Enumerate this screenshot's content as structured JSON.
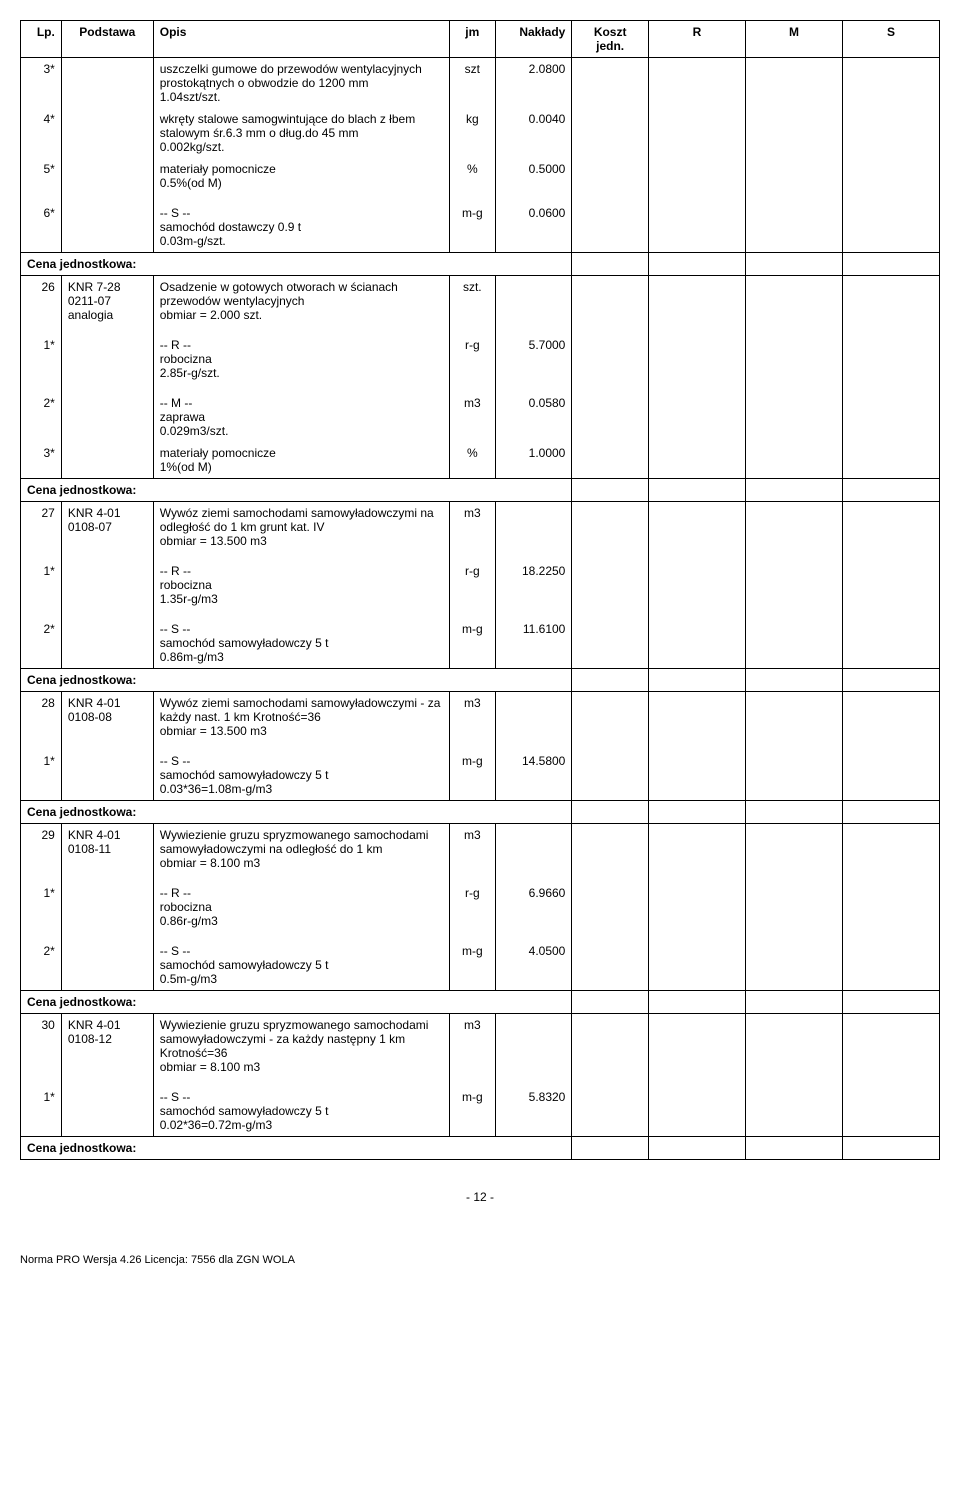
{
  "headers": {
    "lp": "Lp.",
    "podstawa": "Podstawa",
    "opis": "Opis",
    "jm": "jm",
    "naklady": "Nakłady",
    "koszt": "Koszt jedn.",
    "r": "R",
    "m": "M",
    "s": "S"
  },
  "cena_label": "Cena jednostkowa:",
  "rows": [
    {
      "lp": "3*",
      "opis": "uszczelki gumowe do przewodów wentylacyjnych prostokątnych o obwodzie do 1200 mm\n1.04szt/szt.",
      "jm": "szt",
      "naklady": "2.0800"
    },
    {
      "lp": "4*",
      "opis": "wkręty stalowe samogwintujące do blach z łbem stalowym śr.6.3 mm o dług.do 45 mm\n0.002kg/szt.",
      "jm": "kg",
      "naklady": "0.0040"
    },
    {
      "lp": "5*",
      "opis": "materiały pomocnicze\n0.5%(od M)",
      "jm": "%",
      "naklady": "0.5000"
    },
    {
      "spacer": true
    },
    {
      "lp": "6*",
      "opis": "-- S --\nsamochód dostawczy 0.9 t\n0.03m-g/szt.",
      "jm": "m-g",
      "naklady": "0.0600"
    }
  ],
  "group26": {
    "lp": "26",
    "podstawa": "KNR 7-28\n0211-07\nanalogia",
    "opis": "Osadzenie w gotowych otworach w ścianach przewodów wentylacyjnych\nobmiar  =  2.000 szt.",
    "jm": "szt.",
    "sub": [
      {
        "spacer": true
      },
      {
        "lp": "1*",
        "opis": "-- R --\nrobocizna\n2.85r-g/szt.",
        "jm": "r-g",
        "naklady": "5.7000"
      },
      {
        "spacer": true
      },
      {
        "lp": "2*",
        "opis": "-- M --\nzaprawa\n0.029m3/szt.",
        "jm": "m3",
        "naklady": "0.0580"
      },
      {
        "lp": "3*",
        "opis": "materiały pomocnicze\n1%(od M)",
        "jm": "%",
        "naklady": "1.0000"
      }
    ]
  },
  "group27": {
    "lp": "27",
    "podstawa": "KNR 4-01\n0108-07",
    "opis": "Wywóz ziemi samochodami samowyładowczymi na odległość do 1 km grunt kat. IV\nobmiar  =  13.500 m3",
    "jm": "m3",
    "sub": [
      {
        "spacer": true
      },
      {
        "lp": "1*",
        "opis": "-- R --\nrobocizna\n1.35r-g/m3",
        "jm": "r-g",
        "naklady": "18.2250"
      },
      {
        "spacer": true
      },
      {
        "lp": "2*",
        "opis": "-- S --\nsamochód samowyładowczy 5 t\n0.86m-g/m3",
        "jm": "m-g",
        "naklady": "11.6100"
      }
    ]
  },
  "group28": {
    "lp": "28",
    "podstawa": "KNR 4-01\n0108-08",
    "opis": "Wywóz ziemi samochodami samowyładowczymi - za każdy nast. 1 km Krotność=36\nobmiar  =  13.500 m3",
    "jm": "m3",
    "sub": [
      {
        "spacer": true
      },
      {
        "lp": "1*",
        "opis": "-- S --\nsamochód samowyładowczy 5 t\n0.03*36=1.08m-g/m3",
        "jm": "m-g",
        "naklady": "14.5800"
      }
    ]
  },
  "group29": {
    "lp": "29",
    "podstawa": "KNR 4-01\n0108-11",
    "opis": "Wywiezienie gruzu spryzmowanego samochodami samowyładowczymi na odległość do 1 km\nobmiar  =  8.100 m3",
    "jm": "m3",
    "sub": [
      {
        "spacer": true
      },
      {
        "lp": "1*",
        "opis": "-- R --\nrobocizna\n0.86r-g/m3",
        "jm": "r-g",
        "naklady": "6.9660"
      },
      {
        "spacer": true
      },
      {
        "lp": "2*",
        "opis": "-- S --\nsamochód samowyładowczy 5 t\n0.5m-g/m3",
        "jm": "m-g",
        "naklady": "4.0500"
      }
    ]
  },
  "group30": {
    "lp": "30",
    "podstawa": "KNR 4-01\n0108-12",
    "opis": "Wywiezienie gruzu spryzmowanego samochodami samowyładowczymi - za każdy następny 1 km Krotność=36\nobmiar  =  8.100 m3",
    "jm": "m3",
    "sub": [
      {
        "spacer": true
      },
      {
        "lp": "1*",
        "opis": "-- S --\nsamochód samowyładowczy 5 t\n0.02*36=0.72m-g/m3",
        "jm": "m-g",
        "naklady": "5.8320"
      }
    ]
  },
  "page_number": "- 12 -",
  "footer": "Norma PRO Wersja 4.26 Licencja: 7556 dla ZGN WOLA"
}
